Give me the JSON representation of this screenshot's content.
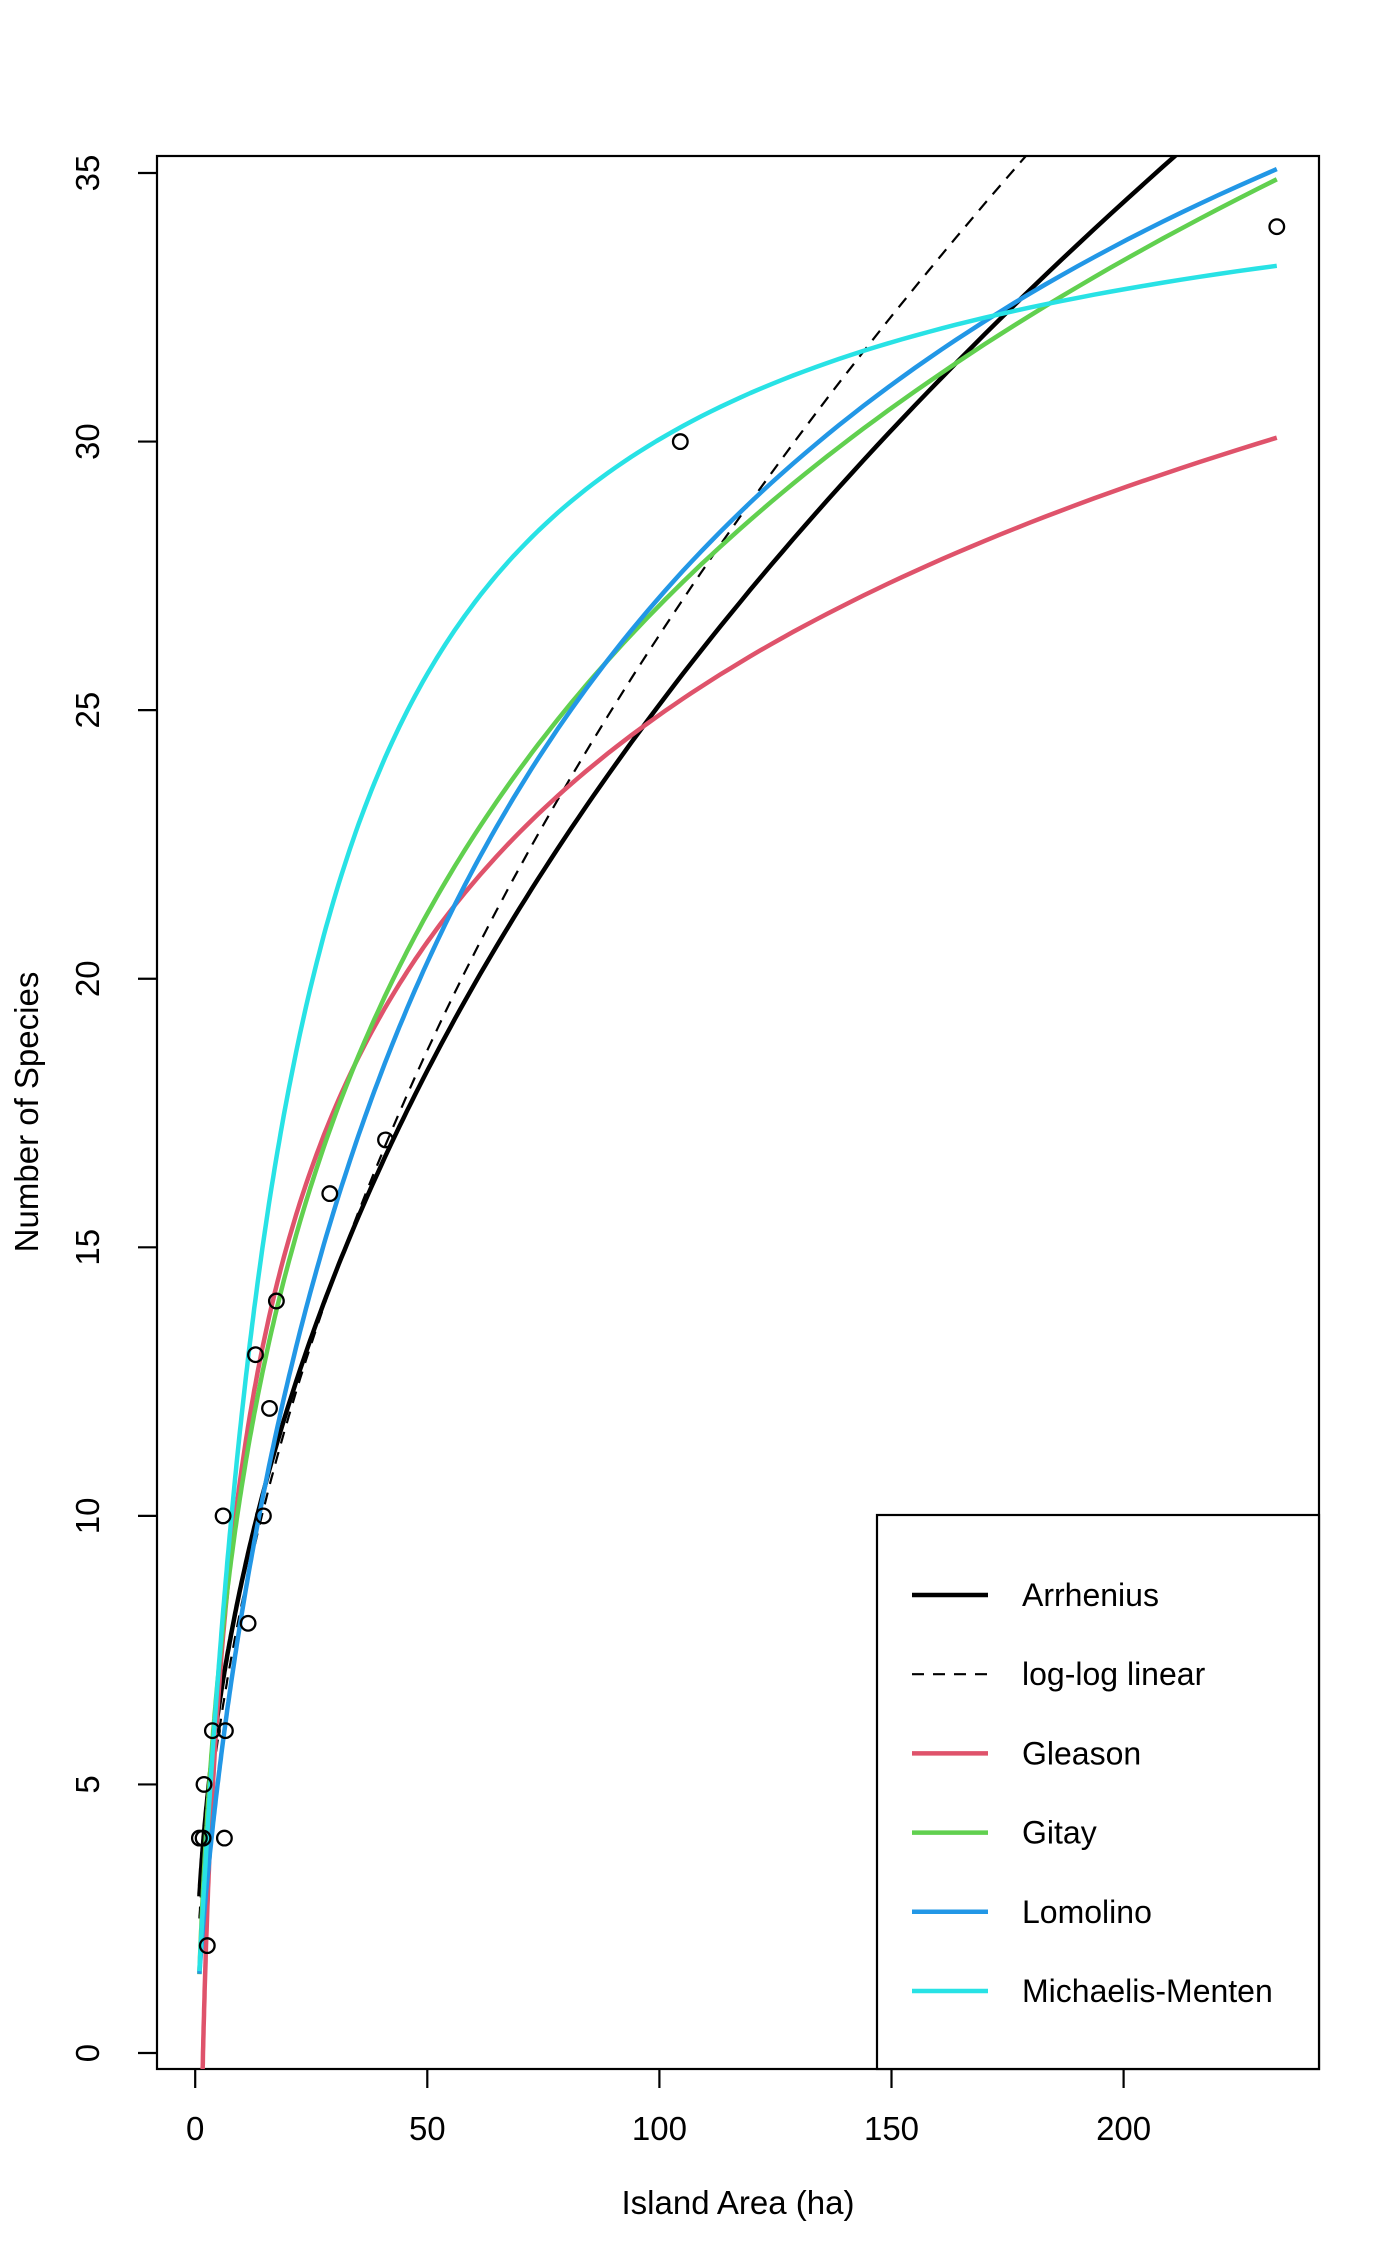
{
  "chart_data": {
    "type": "scatter",
    "title": "",
    "xlabel": "Island Area (ha)",
    "ylabel": "Number of Species",
    "x_ticks": [
      0,
      50,
      100,
      150,
      200
    ],
    "y_ticks": [
      0,
      5,
      10,
      15,
      20,
      25,
      30,
      35
    ],
    "xlim": [
      -8,
      242
    ],
    "ylim": [
      -0.3,
      35.3
    ],
    "grid": false,
    "background": "#ffffff",
    "point_style": {
      "shape": "open-circle",
      "color": "#000000"
    },
    "points": [
      {
        "area": 233,
        "species": 34
      },
      {
        "area": 104.5,
        "species": 30
      },
      {
        "area": 41,
        "species": 17
      },
      {
        "area": 29,
        "species": 16
      },
      {
        "area": 17.5,
        "species": 14
      },
      {
        "area": 13,
        "species": 13
      },
      {
        "area": 16,
        "species": 12
      },
      {
        "area": 6,
        "species": 10
      },
      {
        "area": 14.7,
        "species": 10
      },
      {
        "area": 11.4,
        "species": 8
      },
      {
        "area": 3.7,
        "species": 6
      },
      {
        "area": 6.5,
        "species": 6
      },
      {
        "area": 1.9,
        "species": 5
      },
      {
        "area": 0.9,
        "species": 4
      },
      {
        "area": 1.7,
        "species": 4
      },
      {
        "area": 6.3,
        "species": 4
      },
      {
        "area": 2.6,
        "species": 2
      }
    ],
    "curves": [
      {
        "name": "Arrhenius",
        "color": "#000000",
        "dash": "solid",
        "width": 4.5,
        "model": "power",
        "params": {
          "k": 3.06,
          "z": 0.457
        },
        "domain": [
          0.9,
          233
        ]
      },
      {
        "name": "log-log linear",
        "color": "#000000",
        "dash": "dashed",
        "width": 2.2,
        "model": "power",
        "params": {
          "k": 2.64,
          "z": 0.5
        },
        "domain": [
          0.9,
          233
        ]
      },
      {
        "name": "Gleason",
        "color": "#DF536B",
        "dash": "solid",
        "width": 4.5,
        "model": "log-linear",
        "params": {
          "k": -3.18,
          "slope": 6.1
        },
        "domain": [
          0.9,
          233
        ]
      },
      {
        "name": "Gitay",
        "color": "#61D04F",
        "dash": "solid",
        "width": 4.5,
        "model": "log-quadratic",
        "params": {
          "k": 1.3,
          "slope": 0.845
        },
        "domain": [
          0.9,
          233
        ]
      },
      {
        "name": "Lomolino",
        "color": "#2297E6",
        "dash": "solid",
        "width": 4.5,
        "model": "lomolino",
        "params": {
          "Smax": 51.6,
          "A50": 87.7,
          "Hill": 0.77
        },
        "domain": [
          0.9,
          233
        ]
      },
      {
        "name": "Michaelis-Menten",
        "color": "#28E2E5",
        "dash": "solid",
        "width": 4.5,
        "model": "micmen",
        "params": {
          "Vm": 36.2,
          "K": 20.5
        },
        "domain": [
          0.9,
          233
        ]
      }
    ],
    "legend": {
      "position": "bottomright",
      "entries": [
        "Arrhenius",
        "log-log linear",
        "Gleason",
        "Gitay",
        "Lomolino",
        "Michaelis-Menten"
      ]
    }
  }
}
